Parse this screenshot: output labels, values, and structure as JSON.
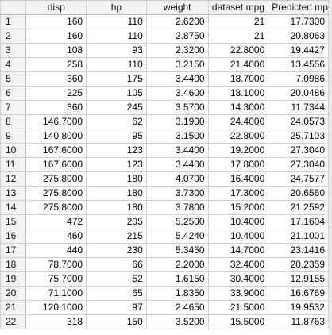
{
  "columns": [
    "",
    "disp",
    "hp",
    "weight",
    "dataset mpg",
    "Predicted mpg"
  ],
  "rows": [
    [
      "1",
      "160",
      "110",
      "2.6200",
      "21",
      "17.7300"
    ],
    [
      "2",
      "160",
      "110",
      "2.8750",
      "21",
      "20.8063"
    ],
    [
      "3",
      "108",
      "93",
      "2.3200",
      "22.8000",
      "19.4427"
    ],
    [
      "4",
      "258",
      "110",
      "3.2150",
      "21.4000",
      "13.4556"
    ],
    [
      "5",
      "360",
      "175",
      "3.4400",
      "18.7000",
      "7.0986"
    ],
    [
      "6",
      "225",
      "105",
      "3.4600",
      "18.1000",
      "20.0486"
    ],
    [
      "7",
      "360",
      "245",
      "3.5700",
      "14.3000",
      "11.7344"
    ],
    [
      "8",
      "146.7000",
      "62",
      "3.1900",
      "24.4000",
      "24.0573"
    ],
    [
      "9",
      "140.8000",
      "95",
      "3.1500",
      "22.8000",
      "25.7103"
    ],
    [
      "10",
      "167.6000",
      "123",
      "3.4400",
      "19.2000",
      "27.3040"
    ],
    [
      "11",
      "167.6000",
      "123",
      "3.4400",
      "17.8000",
      "27.3040"
    ],
    [
      "12",
      "275.8000",
      "180",
      "4.0700",
      "16.4000",
      "24.7577"
    ],
    [
      "13",
      "275.8000",
      "180",
      "3.7300",
      "17.3000",
      "20.6560"
    ],
    [
      "14",
      "275.8000",
      "180",
      "3.7800",
      "15.2000",
      "21.2592"
    ],
    [
      "15",
      "472",
      "205",
      "5.2500",
      "10.4000",
      "17.1604"
    ],
    [
      "16",
      "460",
      "215",
      "5.4240",
      "10.4000",
      "21.1001"
    ],
    [
      "17",
      "440",
      "230",
      "5.3450",
      "14.7000",
      "23.1416"
    ],
    [
      "18",
      "78.7000",
      "66",
      "2.2000",
      "32.4000",
      "20.2359"
    ],
    [
      "19",
      "75.7000",
      "52",
      "1.6150",
      "30.4000",
      "12.9155"
    ],
    [
      "20",
      "71.1000",
      "65",
      "1.8350",
      "33.9000",
      "16.6769"
    ],
    [
      "21",
      "120.1000",
      "97",
      "2.4650",
      "21.5000",
      "19.9532"
    ],
    [
      "22",
      "318",
      "150",
      "3.5200",
      "15.5000",
      "11.8763"
    ]
  ]
}
